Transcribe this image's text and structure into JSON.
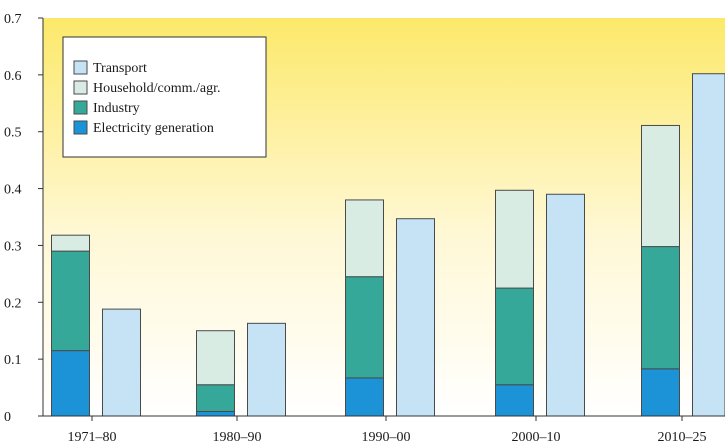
{
  "header": {
    "left_fragment": "",
    "right_fragment": ""
  },
  "colors": {
    "bg_top": "#fce96a",
    "bg_bottom": "#ffffff",
    "transport": "#c6e3f5",
    "household": "#d9ece4",
    "industry": "#35a89a",
    "electricity": "#1b93d6",
    "outline": "#4a4a4a"
  },
  "chart_data": {
    "type": "bar",
    "stacked": true,
    "categories": [
      "1971–80",
      "1980–90",
      "1990–00",
      "2000–10",
      "2010–25"
    ],
    "ylim": [
      0,
      0.7
    ],
    "yticks": [
      "0",
      "0.1",
      "0.2",
      "0.3",
      "0.4",
      "0.5",
      "0.6",
      "0.7"
    ],
    "stack_series": [
      {
        "name": "Electricity generation",
        "key": "electricity",
        "values": [
          0.115,
          0.008,
          0.067,
          0.055,
          0.083
        ]
      },
      {
        "name": "Industry",
        "key": "industry",
        "values": [
          0.175,
          0.047,
          0.178,
          0.17,
          0.215
        ]
      },
      {
        "name": "Household/comm./agr.",
        "key": "household",
        "values": [
          0.028,
          0.095,
          0.135,
          0.172,
          0.213
        ]
      }
    ],
    "separate_series": {
      "name": "Transport",
      "key": "transport",
      "values": [
        0.188,
        0.163,
        0.347,
        0.39,
        0.602
      ]
    },
    "legend": [
      {
        "label": "Transport",
        "key": "transport"
      },
      {
        "label": "Household/comm./agr.",
        "key": "household"
      },
      {
        "label": "Industry",
        "key": "industry"
      },
      {
        "label": "Electricity generation",
        "key": "electricity"
      }
    ],
    "legend_position": "top-left",
    "grid": false
  }
}
